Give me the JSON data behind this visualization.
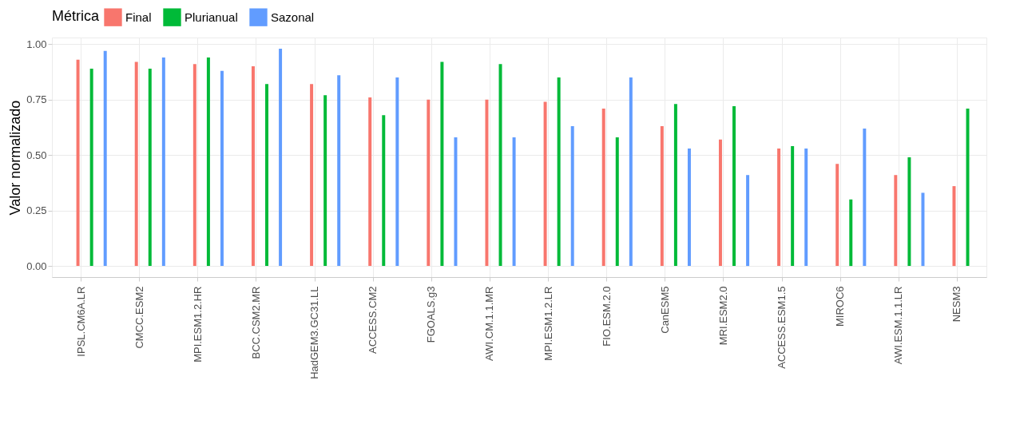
{
  "chart_data": {
    "type": "bar",
    "ylabel": "Valor normalizado",
    "legend_title": "Métrica",
    "legend": "top",
    "categories": [
      "IPSL.CM6A.LR",
      "CMCC.ESM2",
      "MPI.ESM1.2.HR",
      "BCC.CSM2.MR",
      "HadGEM3.GC31.LL",
      "ACCESS.CM2",
      "FGOALS.g3",
      "AWI.CM.1.1.MR",
      "MPI.ESM1.2.LR",
      "FIO.ESM.2.0",
      "CanESM5",
      "MRI.ESM2.0",
      "ACCESS.ESM1.5",
      "MIROC6",
      "AWI.ESM.1.1.LR",
      "NESM3"
    ],
    "series": [
      {
        "name": "Final",
        "color": "#f8766d",
        "values": [
          0.93,
          0.92,
          0.91,
          0.9,
          0.82,
          0.76,
          0.75,
          0.75,
          0.74,
          0.71,
          0.63,
          0.57,
          0.53,
          0.46,
          0.41,
          0.36
        ]
      },
      {
        "name": "Plurianual",
        "color": "#00ba38",
        "values": [
          0.89,
          0.89,
          0.94,
          0.82,
          0.77,
          0.68,
          0.92,
          0.91,
          0.85,
          0.58,
          0.73,
          0.72,
          0.54,
          0.3,
          0.49,
          0.71
        ]
      },
      {
        "name": "Sazonal",
        "color": "#619cff",
        "values": [
          0.97,
          0.94,
          0.88,
          0.98,
          0.86,
          0.85,
          0.58,
          0.58,
          0.63,
          0.85,
          0.53,
          0.41,
          0.53,
          0.62,
          0.33,
          null
        ]
      }
    ],
    "ylim": [
      -0.05,
      1.03
    ],
    "yticks": [
      {
        "value": 0,
        "label": "0.00"
      },
      {
        "value": 0.25,
        "label": "0.25"
      },
      {
        "value": 0.5,
        "label": "0.50"
      },
      {
        "value": 0.75,
        "label": "0.75"
      },
      {
        "value": 1,
        "label": "1.00"
      }
    ],
    "grid": true
  }
}
